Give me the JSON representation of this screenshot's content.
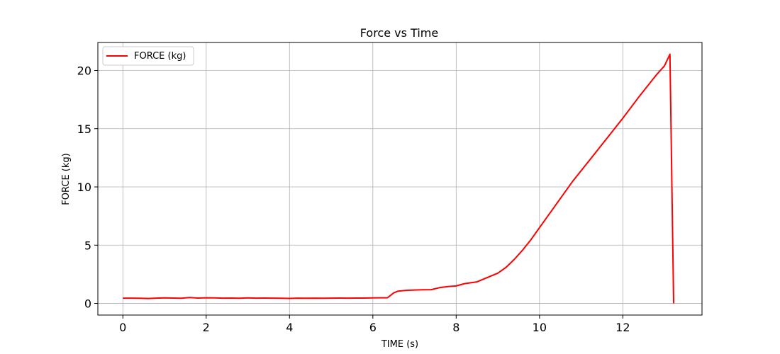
{
  "chart_data": {
    "type": "line",
    "title": "Force vs Time",
    "xlabel": "TIME (s)",
    "ylabel": "FORCE (kg)",
    "xlim": [
      -0.6,
      13.9
    ],
    "ylim": [
      -1.0,
      22.4
    ],
    "xticks": [
      0,
      2,
      4,
      6,
      8,
      10,
      12
    ],
    "yticks": [
      0,
      5,
      10,
      15,
      20
    ],
    "grid": true,
    "legend_position": "top-left",
    "series": [
      {
        "name": "FORCE (kg)",
        "color": "#ff0000",
        "x": [
          0.0,
          0.2,
          0.4,
          0.6,
          0.8,
          1.0,
          1.2,
          1.4,
          1.6,
          1.8,
          2.0,
          2.2,
          2.4,
          2.6,
          2.8,
          3.0,
          3.2,
          3.4,
          3.6,
          3.8,
          4.0,
          4.2,
          4.4,
          4.6,
          4.8,
          5.0,
          5.2,
          5.4,
          5.6,
          5.8,
          6.0,
          6.2,
          6.35,
          6.5,
          6.6,
          6.8,
          7.0,
          7.2,
          7.4,
          7.6,
          7.8,
          8.0,
          8.2,
          8.5,
          8.8,
          9.0,
          9.2,
          9.4,
          9.6,
          9.8,
          10.0,
          10.4,
          10.8,
          11.2,
          11.6,
          12.0,
          12.4,
          12.8,
          13.0,
          13.13,
          13.22
        ],
        "y": [
          0.45,
          0.45,
          0.44,
          0.42,
          0.45,
          0.47,
          0.46,
          0.44,
          0.5,
          0.46,
          0.48,
          0.47,
          0.45,
          0.46,
          0.44,
          0.47,
          0.45,
          0.46,
          0.45,
          0.44,
          0.43,
          0.45,
          0.44,
          0.45,
          0.44,
          0.45,
          0.46,
          0.45,
          0.46,
          0.46,
          0.47,
          0.48,
          0.48,
          0.9,
          1.05,
          1.12,
          1.15,
          1.17,
          1.18,
          1.35,
          1.45,
          1.5,
          1.7,
          1.85,
          2.3,
          2.6,
          3.1,
          3.8,
          4.6,
          5.5,
          6.5,
          8.5,
          10.5,
          12.3,
          14.1,
          15.9,
          17.8,
          19.6,
          20.4,
          21.4,
          0.0
        ]
      }
    ]
  }
}
